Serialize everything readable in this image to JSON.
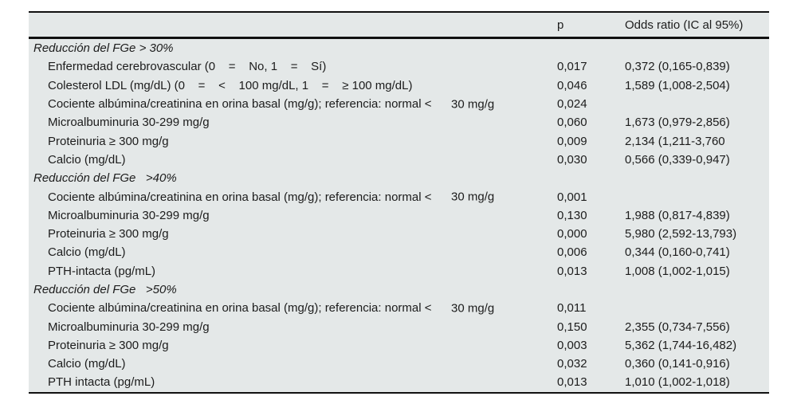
{
  "table": {
    "columns": {
      "label_header": "",
      "p_header": "p",
      "or_header": "Odds ratio (IC al 95%)"
    },
    "sections": [
      {
        "heading": "Reducción del FGe > 30%",
        "rows": [
          {
            "label": "Enfermedad cerebrovascular (0    =    No, 1    =    Sí)",
            "p": "0,017",
            "or": "0,372 (0,165-0,839)"
          },
          {
            "label": "Colesterol LDL (mg/dL) (0    =    <    100 mg/dL, 1    =    ≥ 100 mg/dL)",
            "p": "0,046",
            "or": "1,589 (1,008-2,504)"
          },
          {
            "label": "Cociente albúmina/creatinina en orina basal (mg/g); referencia: normal <",
            "suffix": "30 mg/g",
            "p": "0,024",
            "or": ""
          },
          {
            "label": "Microalbuminuria 30-299 mg/g",
            "p": "0,060",
            "or": "1,673 (0,979-2,856)"
          },
          {
            "label": "Proteinuria ≥ 300 mg/g",
            "p": "0,009",
            "or": "2,134 (1,211-3,760"
          },
          {
            "label": "Calcio (mg/dL)",
            "p": "0,030",
            "or": "0,566 (0,339-0,947)"
          }
        ]
      },
      {
        "heading": "Reducción del FGe   >40%",
        "rows": [
          {
            "label": "Cociente albúmina/creatinina en orina basal (mg/g); referencia: normal <",
            "suffix": "30 mg/g",
            "p": "0,001",
            "or": ""
          },
          {
            "label": "Microalbuminuria 30-299 mg/g",
            "p": "0,130",
            "or": "1,988 (0,817-4,839)"
          },
          {
            "label": "Proteinuria ≥ 300 mg/g",
            "p": "0,000",
            "or": "5,980 (2,592-13,793)"
          },
          {
            "label": "Calcio (mg/dL)",
            "p": "0,006",
            "or": "0,344 (0,160-0,741)"
          },
          {
            "label": "PTH-intacta (pg/mL)",
            "p": "0,013",
            "or": "1,008 (1,002-1,015)"
          }
        ]
      },
      {
        "heading": "Reducción del FGe   >50%",
        "rows": [
          {
            "label": "Cociente albúmina/creatinina en orina basal (mg/g); referencia: normal <",
            "suffix": "30 mg/g",
            "p": "0,011",
            "or": ""
          },
          {
            "label": "Microalbuminuria 30-299 mg/g",
            "p": "0,150",
            "or": "2,355 (0,734-7,556)"
          },
          {
            "label": "Proteinuria ≥ 300 mg/g",
            "p": "0,003",
            "or": "5,362 (1,744-16,482)"
          },
          {
            "label": "Calcio (mg/dL)",
            "p": "0,032",
            "or": "0,360 (0,141-0,916)"
          },
          {
            "label": "PTH intacta (pg/mL)",
            "p": "0,013",
            "or": "1,010 (1,002-1,018)"
          }
        ]
      }
    ],
    "colors": {
      "table_background": "#e4e8e8",
      "rule_color": "#111111",
      "text_color": "#1c1c1c",
      "page_background": "#ffffff"
    }
  },
  "chart_data": {
    "type": "table",
    "title": "",
    "column_headers": [
      "",
      "p",
      "Odds ratio (IC al 95%)"
    ],
    "rows": [
      [
        "Reducción del FGe > 30%",
        "",
        ""
      ],
      [
        "Enfermedad cerebrovascular (0 = No, 1 = Sí)",
        "0,017",
        "0,372 (0,165-0,839)"
      ],
      [
        "Colesterol LDL (mg/dL) (0 = < 100 mg/dL, 1 = ≥ 100 mg/dL)",
        "0,046",
        "1,589 (1,008-2,504)"
      ],
      [
        "Cociente albúmina/creatinina en orina basal (mg/g); referencia: normal < 30 mg/g",
        "0,024",
        ""
      ],
      [
        "Microalbuminuria 30-299 mg/g",
        "0,060",
        "1,673 (0,979-2,856)"
      ],
      [
        "Proteinuria ≥ 300 mg/g",
        "0,009",
        "2,134 (1,211-3,760"
      ],
      [
        "Calcio (mg/dL)",
        "0,030",
        "0,566 (0,339-0,947)"
      ],
      [
        "Reducción del FGe >40%",
        "",
        ""
      ],
      [
        "Cociente albúmina/creatinina en orina basal (mg/g); referencia: normal < 30 mg/g",
        "0,001",
        ""
      ],
      [
        "Microalbuminuria 30-299 mg/g",
        "0,130",
        "1,988 (0,817-4,839)"
      ],
      [
        "Proteinuria ≥ 300 mg/g",
        "0,000",
        "5,980 (2,592-13,793)"
      ],
      [
        "Calcio (mg/dL)",
        "0,006",
        "0,344 (0,160-0,741)"
      ],
      [
        "PTH-intacta (pg/mL)",
        "0,013",
        "1,008 (1,002-1,015)"
      ],
      [
        "Reducción del FGe >50%",
        "",
        ""
      ],
      [
        "Cociente albúmina/creatinina en orina basal (mg/g); referencia: normal < 30 mg/g",
        "0,011",
        ""
      ],
      [
        "Microalbuminuria 30-299 mg/g",
        "0,150",
        "2,355 (0,734-7,556)"
      ],
      [
        "Proteinuria ≥ 300 mg/g",
        "0,003",
        "5,362 (1,744-16,482)"
      ],
      [
        "Calcio (mg/dL)",
        "0,032",
        "0,360 (0,141-0,916)"
      ],
      [
        "PTH intacta (pg/mL)",
        "0,013",
        "1,010 (1,002-1,018)"
      ]
    ]
  }
}
